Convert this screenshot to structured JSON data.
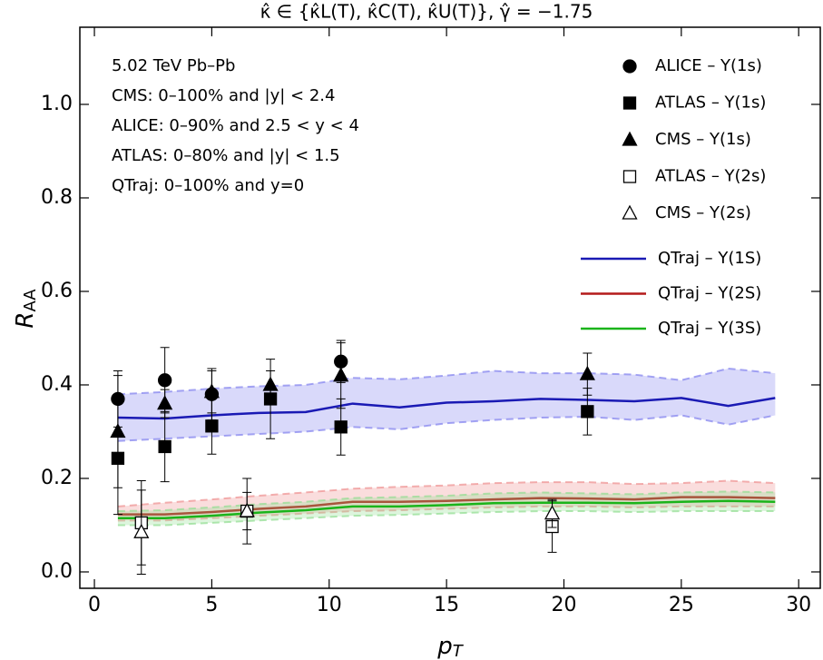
{
  "chart_data": {
    "type": "scatter",
    "title": "κ̂ ∈ {κ̂L(T), κ̂C(T), κ̂U(T)}, γ̂ = −1.75",
    "x_label": {
      "main": "p",
      "sub": "T"
    },
    "y_label": {
      "main": "R",
      "sub": "AA"
    },
    "annotations": [
      "5.02 TeV Pb–Pb",
      "CMS: 0–100% and |y| < 2.4",
      "ALICE: 0–90% and 2.5 < y < 4",
      "ATLAS:  0–80% and |y| < 1.5",
      "QTraj:  0–100% and y=0"
    ],
    "xlim": [
      -0.62,
      30.92
    ],
    "ylim": [
      -0.035,
      1.165
    ],
    "xticks": [
      0,
      5,
      10,
      15,
      20,
      25,
      30
    ],
    "yticks": [
      {
        "value": 0,
        "label": "0.0"
      },
      0.2,
      0.4,
      0.6,
      0.8,
      {
        "value": 1,
        "label": "1.0"
      }
    ],
    "series": [
      {
        "name": "ALICE – Υ(1s)",
        "marker": "circle",
        "filled": true,
        "color": "#000000",
        "x": [
          1,
          3,
          5,
          10.5
        ],
        "values": [
          0.37,
          0.41,
          0.38,
          0.45
        ],
        "errors": [
          0.06,
          0.07,
          0.055,
          0.045
        ]
      },
      {
        "name": "ATLAS – Υ(1s)",
        "marker": "square",
        "filled": true,
        "color": "#000000",
        "x": [
          1,
          3,
          5,
          7.5,
          10.5,
          21
        ],
        "values": [
          0.243,
          0.268,
          0.312,
          0.37,
          0.31,
          0.343
        ],
        "errors": [
          0.12,
          0.075,
          0.06,
          0.085,
          0.06,
          0.05
        ]
      },
      {
        "name": "CMS – Υ(1s)",
        "marker": "triangle",
        "filled": true,
        "color": "#000000",
        "x": [
          1,
          3,
          5,
          7.5,
          10.5,
          21
        ],
        "values": [
          0.3,
          0.36,
          0.385,
          0.4,
          0.42,
          0.423
        ],
        "errors": [
          0.12,
          0.03,
          0.045,
          0.03,
          0.07,
          0.045
        ]
      },
      {
        "name": "ATLAS – Υ(2s)",
        "marker": "square",
        "filled": false,
        "color": "#000000",
        "x": [
          2,
          6.5,
          19.5
        ],
        "values": [
          0.105,
          0.13,
          0.097
        ],
        "errors": [
          0.09,
          0.07,
          0.055
        ]
      },
      {
        "name": "CMS – Υ(2s)",
        "marker": "triangle",
        "filled": false,
        "color": "#000000",
        "x": [
          2,
          6.5,
          19.5
        ],
        "values": [
          0.085,
          0.13,
          0.125
        ],
        "errors": [
          0.09,
          0.04,
          0.03
        ]
      }
    ],
    "lines": [
      {
        "name": "QTraj – Υ(1S)",
        "color": "#1a1ab4",
        "band_color": "#8080ee",
        "x": [
          1,
          3,
          5,
          7,
          9,
          11,
          13,
          15,
          17,
          19,
          21,
          23,
          25,
          27,
          29
        ],
        "values": [
          0.33,
          0.328,
          0.335,
          0.34,
          0.342,
          0.36,
          0.352,
          0.362,
          0.365,
          0.37,
          0.368,
          0.365,
          0.372,
          0.355,
          0.372
        ],
        "band_high": [
          0.38,
          0.385,
          0.392,
          0.397,
          0.4,
          0.415,
          0.412,
          0.42,
          0.43,
          0.425,
          0.425,
          0.422,
          0.41,
          0.435,
          0.425
        ],
        "band_low": [
          0.28,
          0.285,
          0.29,
          0.295,
          0.3,
          0.31,
          0.305,
          0.318,
          0.325,
          0.33,
          0.332,
          0.325,
          0.335,
          0.315,
          0.335
        ]
      },
      {
        "name": "QTraj – Υ(2S)",
        "color": "#b41a1a",
        "band_color": "#ee9090",
        "x": [
          1,
          3,
          5,
          7,
          9,
          11,
          13,
          15,
          17,
          19,
          21,
          23,
          25,
          27,
          29
        ],
        "values": [
          0.123,
          0.123,
          0.128,
          0.135,
          0.14,
          0.15,
          0.15,
          0.152,
          0.155,
          0.158,
          0.157,
          0.155,
          0.16,
          0.16,
          0.158
        ],
        "band_high": [
          0.14,
          0.148,
          0.155,
          0.163,
          0.17,
          0.178,
          0.182,
          0.185,
          0.19,
          0.192,
          0.192,
          0.188,
          0.19,
          0.195,
          0.19
        ],
        "band_low": [
          0.11,
          0.11,
          0.115,
          0.12,
          0.125,
          0.13,
          0.132,
          0.135,
          0.138,
          0.14,
          0.14,
          0.138,
          0.14,
          0.14,
          0.14
        ]
      },
      {
        "name": "QTraj – Υ(3S)",
        "color": "#1ab41a",
        "band_color": "#90dd90",
        "x": [
          1,
          3,
          5,
          7,
          9,
          11,
          13,
          15,
          17,
          19,
          21,
          23,
          25,
          27,
          29
        ],
        "values": [
          0.115,
          0.115,
          0.12,
          0.127,
          0.132,
          0.14,
          0.14,
          0.143,
          0.147,
          0.148,
          0.148,
          0.147,
          0.15,
          0.152,
          0.15
        ],
        "band_high": [
          0.13,
          0.132,
          0.138,
          0.145,
          0.15,
          0.158,
          0.16,
          0.163,
          0.168,
          0.17,
          0.168,
          0.166,
          0.17,
          0.172,
          0.17
        ],
        "band_low": [
          0.1,
          0.1,
          0.105,
          0.11,
          0.115,
          0.12,
          0.122,
          0.125,
          0.128,
          0.13,
          0.13,
          0.128,
          0.13,
          0.13,
          0.13
        ]
      }
    ]
  }
}
